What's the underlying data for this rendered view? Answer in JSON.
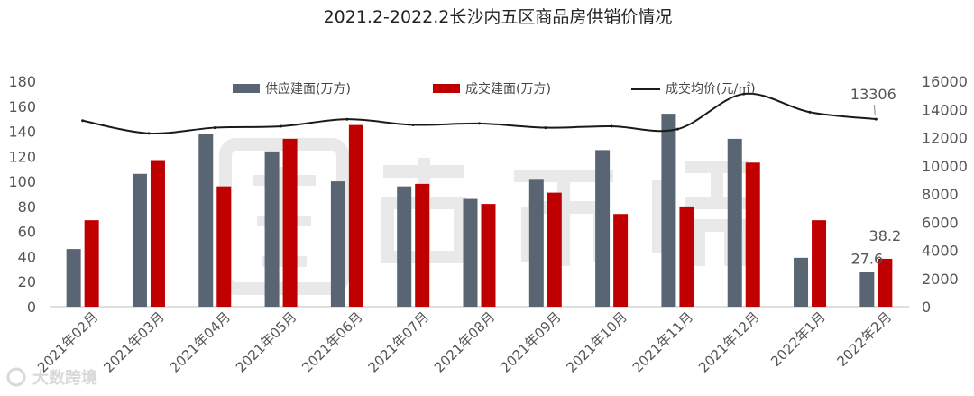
{
  "chart_data": {
    "type": "bar",
    "title": "2021.2-2022.2长沙内五区商品房供销价情况",
    "categories": [
      "2021年02月",
      "2021年03月",
      "2021年04月",
      "2021年05月",
      "2021年06月",
      "2021年07月",
      "2021年08月",
      "2021年09月",
      "2021年10月",
      "2021年11月",
      "2021年12月",
      "2022年1月",
      "2022年2月"
    ],
    "series": [
      {
        "name": "供应建面(万方)",
        "type": "bar",
        "axis": "left",
        "color": "#596573",
        "values": [
          46,
          106,
          138,
          124,
          100,
          96,
          86,
          102,
          125,
          154,
          134,
          39,
          27.6
        ]
      },
      {
        "name": "成交建面(万方)",
        "type": "bar",
        "axis": "left",
        "color": "#c00000",
        "values": [
          69,
          117,
          96,
          134,
          145,
          98,
          82,
          91,
          74,
          80,
          115,
          69,
          38.2
        ]
      },
      {
        "name": "成交均价(元/㎡)",
        "type": "line",
        "axis": "right",
        "color": "#1a1a1a",
        "values": [
          13200,
          12300,
          12700,
          12800,
          13300,
          12900,
          13000,
          12700,
          12800,
          12600,
          15100,
          13800,
          13306
        ]
      }
    ],
    "y_left": {
      "min": 0,
      "max": 180,
      "ticks": [
        0,
        20,
        40,
        60,
        80,
        100,
        120,
        140,
        160,
        180
      ]
    },
    "y_right": {
      "min": 0,
      "max": 16000,
      "ticks": [
        0,
        2000,
        4000,
        6000,
        8000,
        10000,
        12000,
        14000,
        16000
      ]
    },
    "data_labels": [
      {
        "series": 0,
        "index": 12,
        "text": "27.6"
      },
      {
        "series": 1,
        "index": 12,
        "text": "38.2"
      },
      {
        "series": 2,
        "index": 12,
        "text": "13306"
      }
    ],
    "legend_position": "top",
    "grid": false
  },
  "watermark": {
    "text": "克而瑞",
    "credit": "大数跨境"
  }
}
